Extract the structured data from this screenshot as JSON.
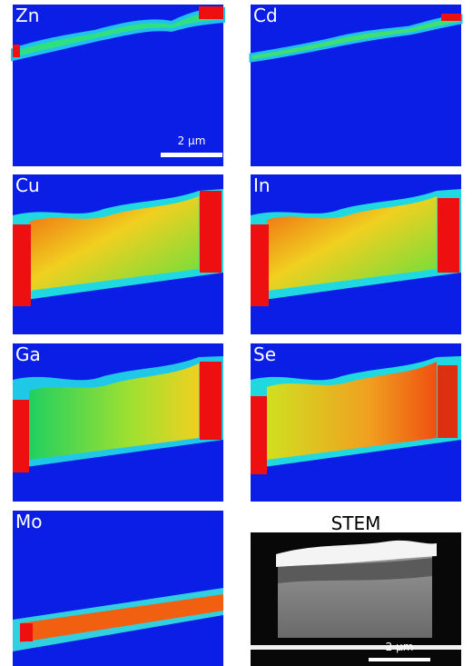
{
  "panels": [
    {
      "label": "Zn",
      "scale_bar": "2 µm"
    },
    {
      "label": "Cd"
    },
    {
      "label": "Cu"
    },
    {
      "label": "In"
    },
    {
      "label": "Ga"
    },
    {
      "label": "Se"
    },
    {
      "label": "Mo"
    },
    {
      "label": "STEM",
      "scale_bar": "2 µm"
    }
  ]
}
